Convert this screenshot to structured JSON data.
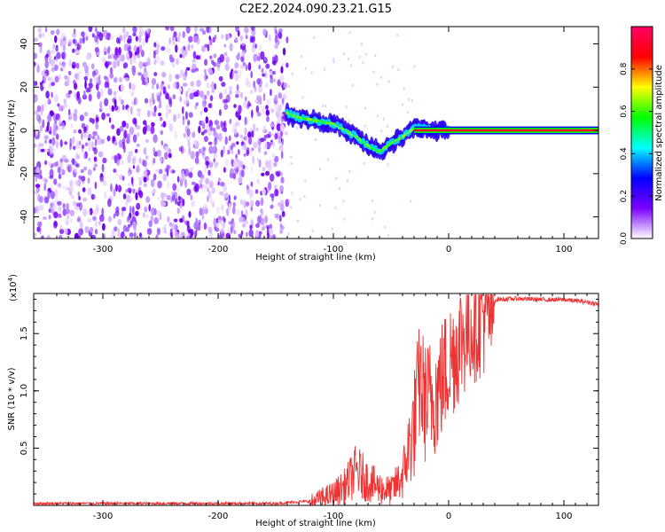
{
  "title": "C2E2.2024.090.23.21.G15",
  "chart_data": [
    {
      "type": "heatmap",
      "xlabel": "Height of straight line (km)",
      "ylabel": "Frequency (Hz)",
      "xlim": [
        -360,
        130
      ],
      "ylim": [
        -50,
        48
      ],
      "xticks": [
        -300,
        -200,
        -100,
        0,
        100
      ],
      "xtick_labels": [
        "-300",
        "-200",
        "-100",
        "0",
        "100"
      ],
      "yticks": [
        -40,
        -20,
        0,
        20,
        40
      ],
      "ytick_labels": [
        "-40",
        "-20",
        "0",
        "20",
        "40"
      ],
      "colorbar": {
        "label": "Normalized spectral amplitude",
        "range": [
          0,
          1
        ],
        "ticks": [
          0.0,
          0.2,
          0.4,
          0.6,
          0.8
        ],
        "tick_labels": [
          "0.0",
          "0.2",
          "0.4",
          "0.6",
          "0.8"
        ],
        "colors": [
          "#ffffff",
          "#7b00ff",
          "#0000ff",
          "#00ffff",
          "#00ff00",
          "#ffff00",
          "#ff0000",
          "#ff0066"
        ]
      },
      "noise_region_x": [
        -360,
        -140
      ],
      "signal_track": {
        "x": [
          -140,
          -130,
          -120,
          -110,
          -100,
          -90,
          -80,
          -70,
          -60,
          -50,
          -40,
          -30,
          -20,
          -10,
          0,
          20,
          50,
          100,
          130
        ],
        "y": [
          8,
          6,
          5,
          4,
          3,
          0,
          -3,
          -7,
          -10,
          -6,
          -3,
          1,
          1,
          0,
          0,
          0,
          0,
          0,
          0
        ]
      },
      "grid": false
    },
    {
      "type": "line",
      "xlabel": "Height of straight line (km)",
      "ylabel": "SNR (10 * v/v)",
      "yscale_label": "(x10",
      "yscale_exp": "4",
      "yscale_close": ")",
      "xlim": [
        -360,
        130
      ],
      "ylim": [
        0,
        1.85
      ],
      "xticks": [
        -300,
        -200,
        -100,
        0,
        100
      ],
      "xtick_labels": [
        "-300",
        "-200",
        "-100",
        "0",
        "100"
      ],
      "yticks": [
        0.5,
        1.0,
        1.5
      ],
      "ytick_labels": [
        "0.5",
        "1.0",
        "1.5"
      ],
      "series": [
        {
          "color": "#ee3333",
          "x": [
            -360,
            -300,
            -200,
            -150,
            -120,
            -110,
            -100,
            -90,
            -80,
            -70,
            -60,
            -50,
            -40,
            -30,
            -25,
            -20,
            -10,
            0,
            10,
            20,
            30,
            40,
            60,
            80,
            100,
            120,
            130
          ],
          "y": [
            0.02,
            0.02,
            0.02,
            0.02,
            0.04,
            0.08,
            0.12,
            0.2,
            0.35,
            0.25,
            0.18,
            0.15,
            0.3,
            0.8,
            1.2,
            1.0,
            1.1,
            1.35,
            1.55,
            1.7,
            1.78,
            1.8,
            1.81,
            1.8,
            1.8,
            1.78,
            1.76
          ]
        }
      ],
      "grid": false
    }
  ]
}
